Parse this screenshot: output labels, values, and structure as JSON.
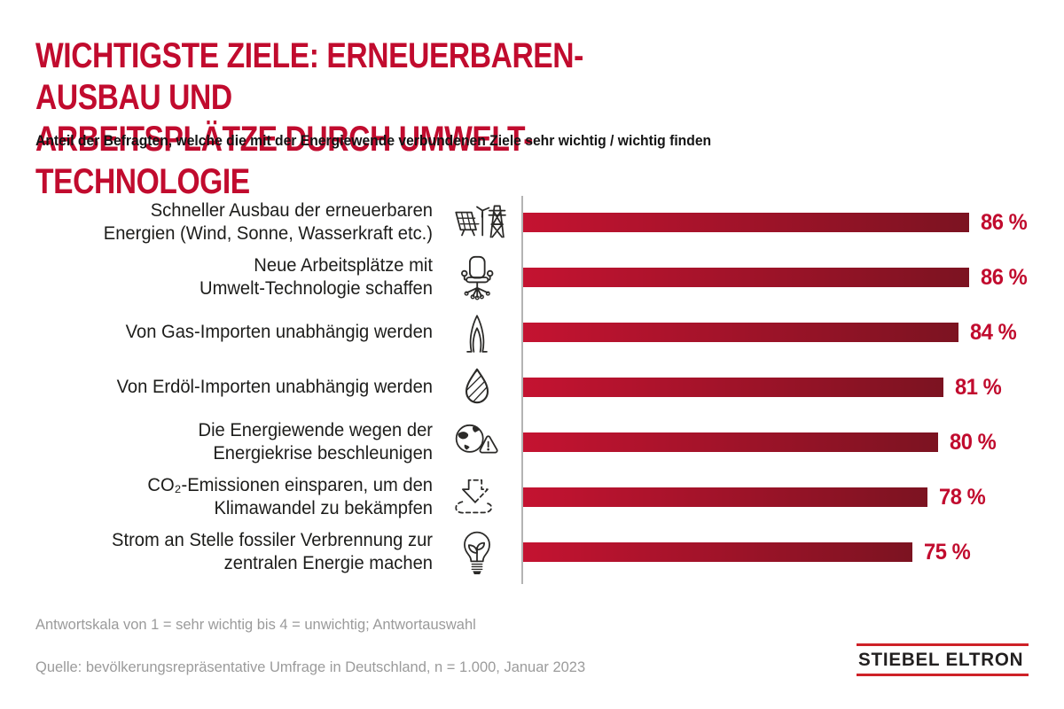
{
  "header": {
    "title": "WICHTIGSTE ZIELE: ERNEUERBAREN-AUSBAU UND\nARBEITSPLÄTZE DURCH UMWELT-TECHNOLOGIE",
    "subtitle": "Anteil der Befragten, welche die mit der Energiewende verbundenen Ziele sehr wichtig / wichtig finden"
  },
  "chart_data": {
    "type": "bar",
    "orientation": "horizontal",
    "title": "Wichtigste Ziele: Erneuerbaren-Ausbau und Arbeitsplätze durch Umwelt-Technologie",
    "categories": [
      "Schneller Ausbau der erneuerbaren Energien (Wind, Sonne, Wasserkraft etc.)",
      "Neue Arbeitsplätze mit Umwelt-Technologie schaffen",
      "Von Gas-Importen unabhängig werden",
      "Von Erdöl-Importen unabhängig werden",
      "Die Energiewende wegen der Energiekrise beschleunigen",
      "CO₂-Emissionen einsparen, um den Klimawandel zu bekämpfen",
      "Strom an Stelle fossiler Verbrennung zur zentralen Energie machen"
    ],
    "values": [
      86,
      86,
      84,
      81,
      80,
      78,
      75
    ],
    "value_labels": [
      "86 %",
      "86 %",
      "84 %",
      "81 %",
      "80 %",
      "78 %",
      "75 %"
    ],
    "unit": "%",
    "xlim": [
      0,
      100
    ],
    "grid": false,
    "legend": "none",
    "bar_color_start": "#C41331",
    "bar_color_end": "#7C1321"
  },
  "rows": [
    {
      "label": "Schneller Ausbau der erneuerbaren\nEnergien (Wind, Sonne, Wasserkraft etc.)",
      "icon": "solar-wind-tower-icon",
      "value": 86,
      "value_label": "86 %"
    },
    {
      "label": "Neue Arbeitsplätze mit\nUmwelt-Technologie schaffen",
      "icon": "office-chair-icon",
      "value": 86,
      "value_label": "86 %"
    },
    {
      "label": "Von Gas-Importen unabhängig werden",
      "icon": "gas-flame-icon",
      "value": 84,
      "value_label": "84 %"
    },
    {
      "label": "Von Erdöl-Importen unabhängig werden",
      "icon": "oil-drop-icon",
      "value": 81,
      "value_label": "81 %"
    },
    {
      "label": "Die Energiewende wegen der\nEnergiekrise beschleunigen",
      "icon": "globe-warning-icon",
      "value": 80,
      "value_label": "80 %"
    },
    {
      "label": "CO₂-Emissionen einsparen, um den\nKlimawandel zu bekämpfen",
      "icon": "co2-reduction-icon",
      "value": 78,
      "value_label": "78 %"
    },
    {
      "label": "Strom an Stelle fossiler Verbrennung zur\nzentralen Energie machen",
      "icon": "lightbulb-leaf-icon",
      "value": 75,
      "value_label": "75 %"
    }
  ],
  "footer": {
    "note": "Antwortskala von 1 = sehr wichtig bis 4 = unwichtig; Antwortauswahl",
    "source": "Quelle: bevölkerungsrepräsentative Umfrage in Deutschland, n = 1.000, Januar 2023",
    "logo_text": "STIEBEL ELTRON"
  },
  "colors": {
    "accent_red": "#C10B2E",
    "bar_gradient_start": "#C41331",
    "bar_gradient_end": "#7C1321",
    "axis_gray": "#b4b4b4",
    "text_dark": "#1d1d1b",
    "footer_gray": "#9b9b9b",
    "logo_red": "#CE2127",
    "logo_black": "#221F1F"
  }
}
